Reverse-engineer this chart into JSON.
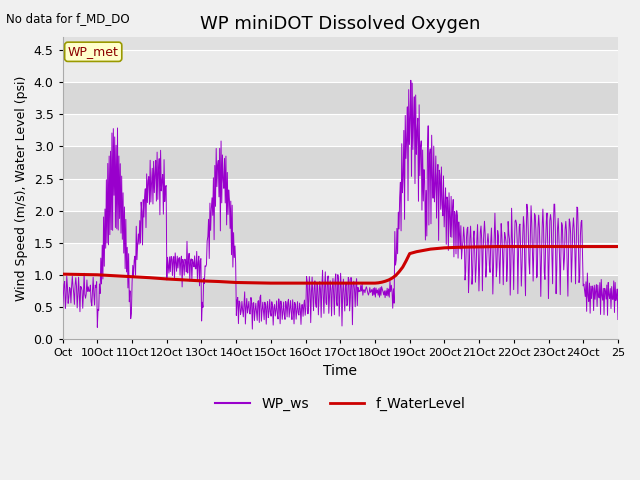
{
  "title": "WP miniDOT Dissolved Oxygen",
  "xlabel": "Time",
  "ylabel": "Wind Speed (m/s), Water Level (psi)",
  "ylim": [
    0.0,
    4.7
  ],
  "yticks": [
    0.0,
    0.5,
    1.0,
    1.5,
    2.0,
    2.5,
    3.0,
    3.5,
    4.0,
    4.5
  ],
  "no_data_text": "No data for f_MD_DO",
  "annotation_text": "WP_met",
  "fig_facecolor": "#f0f0f0",
  "ax_facecolor": "#e0e0e0",
  "band_light": "#ebebeb",
  "band_dark": "#d8d8d8",
  "legend_entries": [
    "WP_ws",
    "f_WaterLevel"
  ],
  "line_colors": [
    "#9900cc",
    "#cc0000"
  ],
  "wl_x": [
    9.0,
    9.5,
    10.0,
    10.5,
    11.0,
    11.5,
    12.0,
    12.5,
    13.0,
    13.5,
    14.0,
    14.5,
    15.0,
    15.5,
    16.0,
    16.5,
    17.0,
    17.3,
    17.6,
    17.9,
    18.0,
    18.1,
    18.2,
    18.3,
    18.4,
    18.5,
    18.6,
    18.7,
    18.8,
    18.9,
    19.0,
    19.2,
    19.4,
    19.6,
    19.8,
    20.0,
    20.5,
    21.0,
    21.5,
    22.0,
    22.5,
    23.0,
    23.5,
    24.0,
    24.5,
    25.0
  ],
  "wl_y": [
    1.01,
    1.005,
    1.0,
    0.985,
    0.97,
    0.955,
    0.935,
    0.92,
    0.905,
    0.895,
    0.88,
    0.875,
    0.87,
    0.87,
    0.87,
    0.87,
    0.87,
    0.87,
    0.87,
    0.87,
    0.87,
    0.875,
    0.885,
    0.9,
    0.92,
    0.95,
    0.99,
    1.05,
    1.12,
    1.22,
    1.33,
    1.36,
    1.38,
    1.4,
    1.41,
    1.42,
    1.43,
    1.435,
    1.44,
    1.44,
    1.44,
    1.44,
    1.44,
    1.44,
    1.44,
    1.44
  ],
  "xticks": [
    9,
    10,
    11,
    12,
    13,
    14,
    15,
    16,
    17,
    18,
    19,
    20,
    21,
    22,
    23,
    24,
    25
  ],
  "xticklabels": [
    "Oct",
    "10Oct",
    "11Oct",
    "12Oct",
    "13Oct",
    "14Oct",
    "15Oct",
    "16Oct",
    "17Oct",
    "18Oct",
    "19Oct",
    "20Oct",
    "21Oct",
    "22Oct",
    "23Oct",
    "24Oct",
    "25"
  ]
}
